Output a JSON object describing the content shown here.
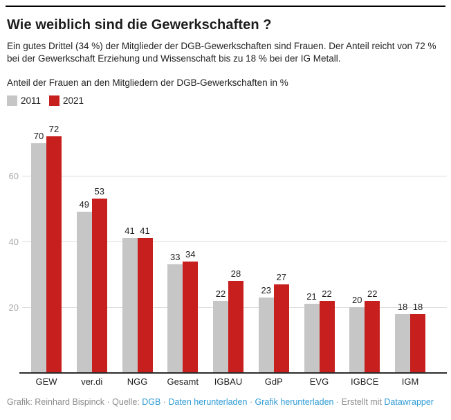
{
  "header": {
    "title": "Wie weiblich sind die Gewerkschaften ?",
    "subtitle": "Ein gutes Drittel (34 %) der Mitglieder der DGB-Gewerkschaften sind Frauen. Der Anteil reicht von 72 % bei der Gewerkschaft Erziehung und Wissenschaft bis zu 18 % bei der IG Metall.",
    "axis_note": "Anteil der Frauen an den Mitgliedern der DGB-Gewerkschaften in %"
  },
  "legend": {
    "items": [
      {
        "label": "2011",
        "color": "#c6c6c6"
      },
      {
        "label": "2021",
        "color": "#c71e1e"
      }
    ]
  },
  "chart_data": {
    "type": "bar",
    "categories": [
      "GEW",
      "ver.di",
      "NGG",
      "Gesamt",
      "IGBAU",
      "GdP",
      "EVG",
      "IGBCE",
      "IGM"
    ],
    "series": [
      {
        "name": "2011",
        "color": "#c6c6c6",
        "values": [
          70,
          49,
          41,
          33,
          22,
          23,
          21,
          20,
          18
        ]
      },
      {
        "name": "2021",
        "color": "#c71e1e",
        "values": [
          72,
          53,
          41,
          34,
          28,
          27,
          22,
          22,
          18
        ]
      }
    ],
    "title": "Wie weiblich sind die Gewerkschaften ?",
    "xlabel": "",
    "ylabel": "Anteil der Frauen an den Mitgliedern der DGB-Gewerkschaften in %",
    "y_ticks": [
      20,
      40,
      60
    ],
    "ylim": [
      0,
      75
    ],
    "grid": true,
    "value_labels": true,
    "legend_position": "top-left",
    "colors": {
      "grid": "#dcdcdc",
      "tick_text": "#a8a8a8",
      "baseline": "#2b2b2b"
    }
  },
  "footer": {
    "segments": [
      {
        "text": "Grafik: Reinhard Bispinck",
        "link": false,
        "name": "credit-text"
      },
      {
        "text": " · ",
        "link": false,
        "name": "separator"
      },
      {
        "text": "Quelle: ",
        "link": false,
        "name": "source-label"
      },
      {
        "text": "DGB",
        "link": true,
        "name": "source-link"
      },
      {
        "text": " · ",
        "link": false,
        "name": "separator"
      },
      {
        "text": "Daten herunterladen",
        "link": true,
        "name": "download-data-link"
      },
      {
        "text": " · ",
        "link": false,
        "name": "separator"
      },
      {
        "text": "Grafik herunterladen",
        "link": true,
        "name": "download-image-link"
      },
      {
        "text": " · ",
        "link": false,
        "name": "separator"
      },
      {
        "text": "Erstellt mit ",
        "link": false,
        "name": "created-with-label"
      },
      {
        "text": "Datawrapper",
        "link": true,
        "name": "datawrapper-link"
      }
    ],
    "link_color": "#2e9bd5"
  }
}
